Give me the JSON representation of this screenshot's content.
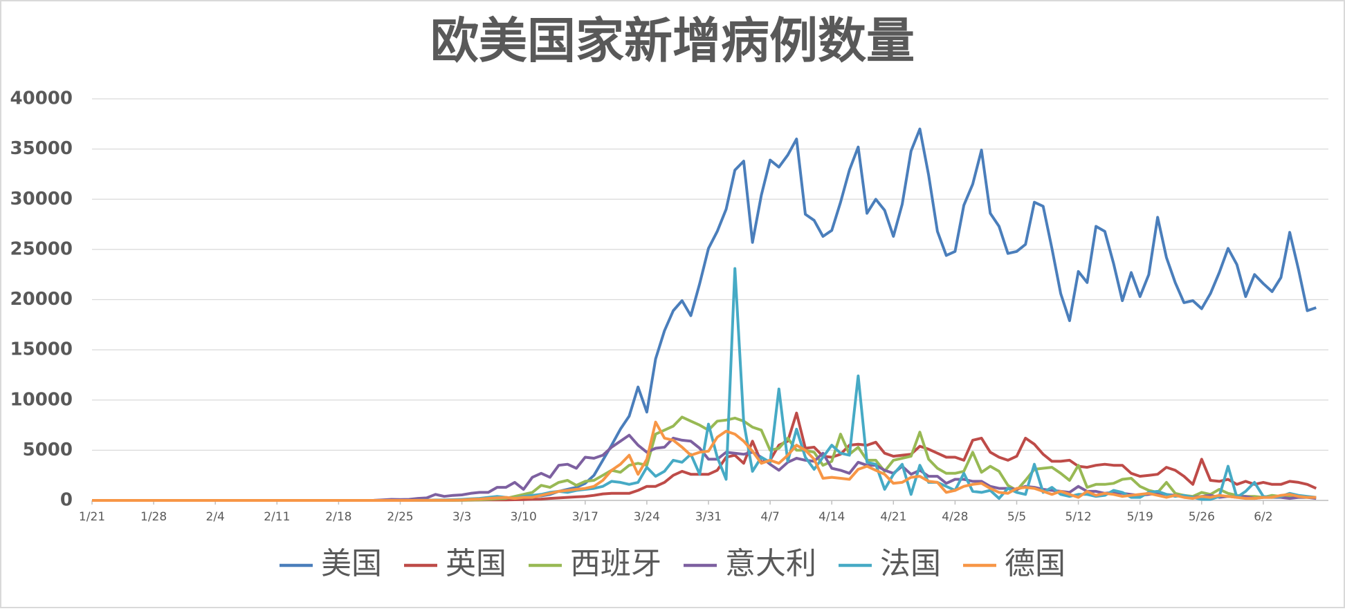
{
  "chart_data": {
    "type": "line",
    "title": "欧美国家新增病例数量",
    "categories": [
      "1/21",
      null,
      null,
      null,
      null,
      null,
      null,
      "1/28",
      null,
      null,
      null,
      null,
      null,
      null,
      "2/4",
      null,
      null,
      null,
      null,
      null,
      null,
      "2/11",
      null,
      null,
      null,
      null,
      null,
      null,
      "2/18",
      null,
      null,
      null,
      null,
      null,
      null,
      "2/25",
      null,
      null,
      null,
      null,
      null,
      null,
      "3/3",
      null,
      null,
      null,
      null,
      null,
      null,
      "3/10",
      null,
      null,
      null,
      null,
      null,
      null,
      "3/17",
      null,
      null,
      null,
      null,
      null,
      null,
      "3/24",
      null,
      null,
      null,
      null,
      null,
      null,
      "3/31",
      null,
      null,
      null,
      null,
      null,
      null,
      "4/7",
      null,
      null,
      null,
      null,
      null,
      null,
      "4/14",
      null,
      null,
      null,
      null,
      null,
      null,
      "4/21",
      null,
      null,
      null,
      null,
      null,
      null,
      "4/28",
      null,
      null,
      null,
      null,
      null,
      null,
      "5/5",
      null,
      null,
      null,
      null,
      null,
      null,
      "5/12",
      null,
      null,
      null,
      null,
      null,
      null,
      "5/19",
      null,
      null,
      null,
      null,
      null,
      null,
      "5/26",
      null,
      null,
      null,
      null,
      null,
      null,
      "6/2",
      null,
      null,
      null,
      null,
      null,
      null
    ],
    "series": [
      {
        "name": "美国",
        "color": "#4a7ebb",
        "values": [
          1,
          0,
          0,
          1,
          0,
          2,
          0,
          0,
          1,
          0,
          0,
          0,
          0,
          1,
          0,
          0,
          0,
          0,
          0,
          1,
          0,
          0,
          0,
          0,
          1,
          0,
          0,
          0,
          0,
          0,
          0,
          0,
          0,
          0,
          0,
          1,
          3,
          5,
          9,
          13,
          20,
          30,
          40,
          50,
          60,
          70,
          100,
          130,
          200,
          280,
          400,
          450,
          600,
          900,
          1100,
          1300,
          1700,
          2500,
          4000,
          5500,
          7100,
          8400,
          11300,
          8800,
          14100,
          16900,
          18900,
          19900,
          18400,
          21600,
          25100,
          26800,
          29000,
          32900,
          33800,
          25700,
          30400,
          33900,
          33200,
          34400,
          36000,
          28500,
          27900,
          26300,
          26900,
          29700,
          32900,
          35200,
          28600,
          30000,
          28900,
          26300,
          29500,
          34800,
          37000,
          32400,
          26800,
          24400,
          24800,
          29400,
          31500,
          34900,
          28600,
          27300,
          24600,
          24800,
          25500,
          29700,
          29300,
          25100,
          20600,
          17900,
          22800,
          21700,
          27300,
          26800,
          23600,
          19900,
          22700,
          20300,
          22500,
          28200,
          24200,
          21700,
          19700,
          19900,
          19100,
          20600,
          22700,
          25100,
          23500,
          20300,
          22500,
          21600,
          20800,
          22200,
          26700,
          23000,
          18900,
          19200
        ]
      },
      {
        "name": "英国",
        "color": "#be4b48",
        "values": [
          0,
          0,
          0,
          0,
          0,
          0,
          0,
          0,
          0,
          0,
          0,
          0,
          1,
          0,
          0,
          0,
          0,
          0,
          0,
          0,
          0,
          0,
          0,
          0,
          0,
          0,
          0,
          0,
          0,
          0,
          0,
          0,
          0,
          0,
          0,
          0,
          2,
          3,
          5,
          10,
          15,
          10,
          20,
          30,
          40,
          50,
          60,
          50,
          70,
          90,
          120,
          130,
          200,
          250,
          300,
          350,
          400,
          500,
          650,
          700,
          700,
          700,
          1000,
          1400,
          1400,
          1800,
          2500,
          2900,
          2600,
          2600,
          2600,
          3000,
          4300,
          4500,
          3700,
          5900,
          3800,
          4000,
          5500,
          5900,
          8700,
          5200,
          5300,
          4400,
          4300,
          4600,
          5500,
          5600,
          5500,
          5800,
          4700,
          4400,
          4500,
          4600,
          5400,
          5100,
          4700,
          4300,
          4300,
          4000,
          6000,
          6200,
          4800,
          4300,
          4000,
          4400,
          6200,
          5600,
          4600,
          3900,
          3900,
          4000,
          3400,
          3300,
          3500,
          3600,
          3500,
          3500,
          2700,
          2400,
          2500,
          2600,
          3300,
          3000,
          2400,
          1600,
          4100,
          2000,
          1900,
          2100,
          1600,
          1900,
          1600,
          1800,
          1600,
          1600,
          1900,
          1800,
          1600,
          1200
        ]
      },
      {
        "name": "西班牙",
        "color": "#98b954",
        "values": [
          0,
          0,
          0,
          0,
          0,
          0,
          0,
          0,
          0,
          0,
          0,
          0,
          0,
          0,
          0,
          0,
          0,
          0,
          0,
          0,
          0,
          0,
          0,
          0,
          0,
          0,
          0,
          0,
          0,
          0,
          0,
          0,
          0,
          0,
          0,
          0,
          1,
          2,
          3,
          4,
          5,
          10,
          20,
          40,
          60,
          100,
          150,
          200,
          400,
          600,
          800,
          1500,
          1300,
          1800,
          2000,
          1500,
          1900,
          2000,
          2500,
          3000,
          2800,
          3500,
          3700,
          3500,
          6600,
          7000,
          7400,
          8300,
          7900,
          7500,
          7000,
          7900,
          8000,
          8200,
          7900,
          7300,
          7000,
          5000,
          5200,
          6200,
          5000,
          5000,
          4800,
          3500,
          3900,
          6600,
          4600,
          5300,
          4000,
          4000,
          2900,
          4000,
          4200,
          4400,
          6800,
          4100,
          3200,
          2700,
          2700,
          2900,
          4800,
          2800,
          3400,
          2900,
          1500,
          1000,
          2000,
          3100,
          3200,
          3300,
          2700,
          2000,
          3500,
          1300,
          1600,
          1600,
          1700,
          2100,
          2200,
          1400,
          1000,
          800,
          1800,
          700,
          500,
          400,
          800,
          600,
          1100,
          700,
          500,
          400,
          400,
          300,
          500,
          400,
          400,
          300,
          300,
          300
        ]
      },
      {
        "name": "意大利",
        "color": "#7d60a0",
        "values": [
          0,
          0,
          0,
          0,
          0,
          0,
          0,
          0,
          0,
          0,
          0,
          0,
          0,
          0,
          0,
          0,
          0,
          0,
          0,
          0,
          0,
          0,
          0,
          0,
          0,
          0,
          0,
          0,
          0,
          0,
          0,
          0,
          5,
          50,
          100,
          90,
          100,
          200,
          250,
          600,
          400,
          500,
          550,
          700,
          800,
          800,
          1300,
          1300,
          1800,
          1100,
          2300,
          2700,
          2300,
          3500,
          3600,
          3200,
          4300,
          4200,
          4500,
          5300,
          5900,
          6500,
          5500,
          4800,
          5200,
          5300,
          6200,
          6000,
          5900,
          5200,
          4100,
          4100,
          4800,
          4700,
          4600,
          4800,
          4300,
          3600,
          3000,
          3800,
          4200,
          4000,
          3900,
          4700,
          3200,
          3000,
          2700,
          3800,
          3500,
          3500,
          3000,
          2700,
          3400,
          2600,
          3000,
          2400,
          2400,
          1700,
          2100,
          2100,
          1900,
          1900,
          1400,
          1200,
          1200,
          1100,
          1400,
          1300,
          1100,
          1000,
          900,
          800,
          1400,
          900,
          900,
          700,
          800,
          700,
          600,
          500,
          600,
          700,
          600,
          500,
          400,
          300,
          400,
          500,
          300,
          400,
          300,
          400,
          200,
          300,
          300,
          300,
          200,
          300,
          300,
          200
        ]
      },
      {
        "name": "法国",
        "color": "#46aac5",
        "values": [
          0,
          0,
          0,
          1,
          0,
          0,
          0,
          0,
          0,
          0,
          0,
          0,
          0,
          0,
          0,
          0,
          0,
          0,
          0,
          0,
          0,
          0,
          0,
          0,
          0,
          0,
          0,
          0,
          0,
          0,
          0,
          0,
          0,
          0,
          0,
          0,
          2,
          10,
          20,
          40,
          50,
          70,
          100,
          150,
          200,
          300,
          400,
          300,
          200,
          400,
          500,
          600,
          800,
          900,
          800,
          1000,
          1100,
          1200,
          1400,
          1900,
          1800,
          1600,
          1800,
          3300,
          2400,
          2900,
          4000,
          3800,
          4600,
          2600,
          7600,
          4300,
          2100,
          23100,
          7800,
          2900,
          4300,
          3800,
          11100,
          3900,
          7100,
          4300,
          3100,
          4300,
          5500,
          4700,
          4500,
          12400,
          3800,
          3600,
          1100,
          2600,
          3600,
          600,
          3500,
          1800,
          1800,
          1400,
          1000,
          2700,
          900,
          800,
          1000,
          200,
          1200,
          800,
          600,
          3600,
          800,
          1300,
          600,
          400,
          600,
          600,
          400,
          500,
          1000,
          800,
          300,
          300,
          800,
          900,
          600,
          400,
          500,
          300,
          100,
          100,
          400,
          3400,
          300,
          900,
          1800,
          400,
          300,
          400,
          700,
          500,
          400,
          300
        ]
      },
      {
        "name": "德国",
        "color": "#f79646",
        "values": [
          0,
          0,
          0,
          0,
          0,
          0,
          0,
          1,
          0,
          0,
          0,
          0,
          0,
          0,
          0,
          0,
          0,
          0,
          0,
          0,
          0,
          0,
          0,
          0,
          0,
          0,
          0,
          0,
          0,
          0,
          0,
          0,
          0,
          0,
          0,
          0,
          2,
          5,
          10,
          15,
          20,
          30,
          40,
          100,
          130,
          200,
          250,
          300,
          200,
          300,
          300,
          500,
          700,
          900,
          1000,
          1100,
          1200,
          1400,
          2000,
          3000,
          3600,
          4500,
          2600,
          4100,
          7800,
          6200,
          6000,
          5300,
          4500,
          4800,
          4900,
          6300,
          6900,
          6600,
          5900,
          4900,
          3700,
          4000,
          3700,
          4500,
          5500,
          5000,
          4100,
          2200,
          2300,
          2200,
          2100,
          3100,
          3400,
          3000,
          2600,
          1700,
          1800,
          2300,
          2400,
          1900,
          1800,
          800,
          1000,
          1400,
          1600,
          1700,
          1200,
          800,
          700,
          1200,
          1300,
          1200,
          900,
          600,
          900,
          600,
          300,
          900,
          500,
          700,
          600,
          400,
          500,
          600,
          700,
          500,
          300,
          500,
          300,
          200,
          400,
          300,
          500,
          400,
          300,
          200,
          200,
          300,
          300,
          500,
          600,
          400,
          300,
          300
        ]
      }
    ],
    "ylim": [
      0,
      40000
    ],
    "yticks": [
      0,
      5000,
      10000,
      15000,
      20000,
      25000,
      30000,
      35000,
      40000
    ],
    "grid": true,
    "legend": "bottom"
  }
}
